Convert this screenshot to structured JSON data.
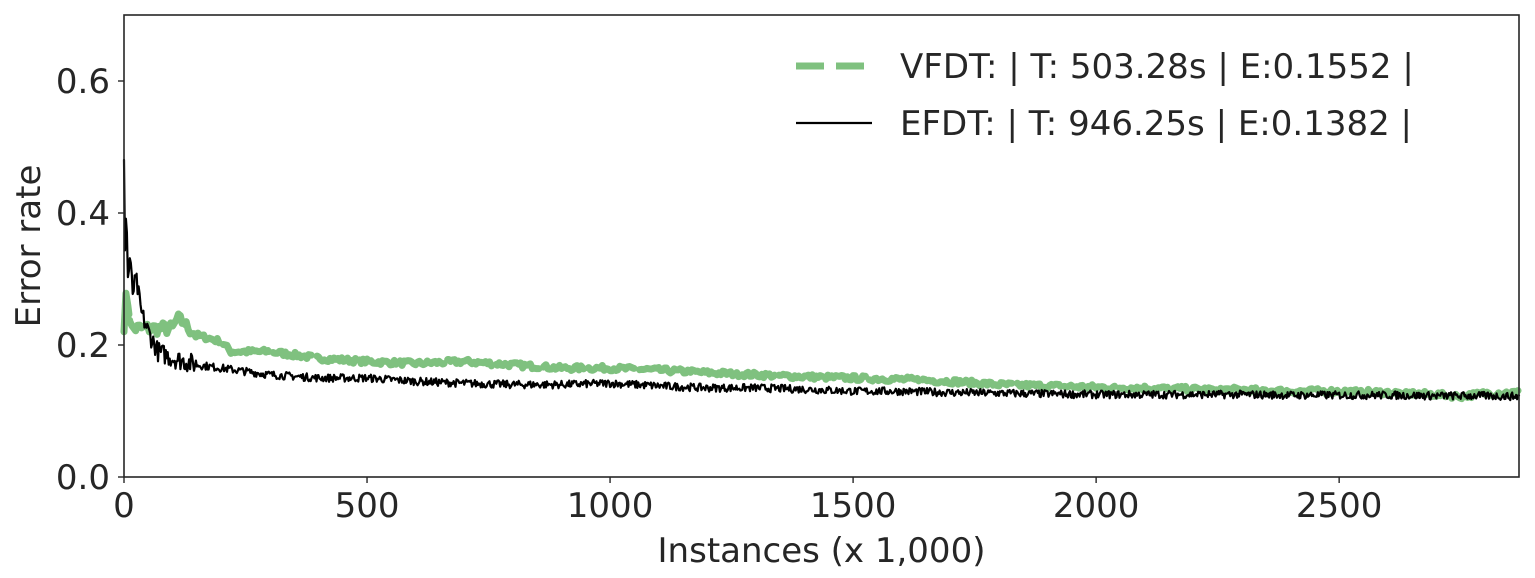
{
  "chart_data": {
    "type": "line",
    "xlabel": "Instances (x 1,000)",
    "ylabel": "Error rate",
    "xlim": [
      0,
      2870
    ],
    "ylim": [
      0,
      0.7
    ],
    "xticks": [
      0,
      500,
      1000,
      1500,
      2000,
      2500
    ],
    "xtick_labels": [
      "0",
      "500",
      "1000",
      "1500",
      "2000",
      "2500"
    ],
    "yticks": [
      0.0,
      0.2,
      0.4,
      0.6
    ],
    "ytick_labels": [
      "0.0",
      "0.2",
      "0.4",
      "0.6"
    ],
    "grid": false,
    "legend_position": "top-right",
    "series": [
      {
        "name": "VFDT: | T: 503.28s |  E:0.1552 |",
        "color": "#7fc17f",
        "style": "dashed",
        "x": [
          0,
          5,
          15,
          30,
          60,
          100,
          110,
          150,
          200,
          220,
          300,
          400,
          500,
          600,
          700,
          800,
          900,
          1000,
          1100,
          1200,
          1300,
          1400,
          1500,
          1600,
          1700,
          1800,
          1900,
          2000,
          2100,
          2200,
          2300,
          2400,
          2500,
          2600,
          2700,
          2750,
          2800,
          2870
        ],
        "y": [
          0.23,
          0.28,
          0.225,
          0.225,
          0.225,
          0.225,
          0.24,
          0.215,
          0.205,
          0.19,
          0.19,
          0.18,
          0.175,
          0.172,
          0.175,
          0.17,
          0.165,
          0.165,
          0.162,
          0.158,
          0.155,
          0.152,
          0.15,
          0.148,
          0.145,
          0.14,
          0.138,
          0.136,
          0.135,
          0.133,
          0.132,
          0.13,
          0.13,
          0.128,
          0.125,
          0.122,
          0.127,
          0.128
        ]
      },
      {
        "name": "EFDT: | T: 946.25s |  E:0.1382 |",
        "color": "#000000",
        "style": "solid",
        "x": [
          0,
          2,
          5,
          8,
          12,
          18,
          25,
          35,
          50,
          70,
          100,
          150,
          200,
          250,
          300,
          400,
          500,
          600,
          700,
          800,
          900,
          1000,
          1100,
          1200,
          1300,
          1400,
          1500,
          1600,
          1700,
          1800,
          1900,
          2000,
          2100,
          2200,
          2300,
          2400,
          2500,
          2600,
          2700,
          2800,
          2870
        ],
        "y": [
          0.49,
          0.35,
          0.41,
          0.3,
          0.33,
          0.28,
          0.3,
          0.25,
          0.22,
          0.19,
          0.18,
          0.17,
          0.165,
          0.16,
          0.155,
          0.15,
          0.15,
          0.145,
          0.142,
          0.14,
          0.14,
          0.142,
          0.138,
          0.135,
          0.135,
          0.133,
          0.13,
          0.13,
          0.128,
          0.127,
          0.126,
          0.125,
          0.125,
          0.125,
          0.125,
          0.124,
          0.124,
          0.124,
          0.123,
          0.123,
          0.122
        ]
      }
    ]
  }
}
